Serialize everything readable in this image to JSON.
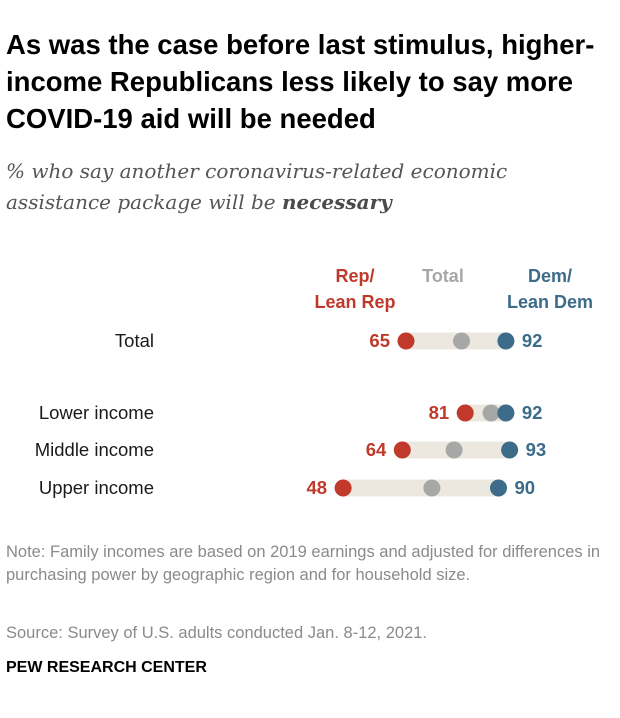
{
  "header": {
    "title": "As was the case before last stimulus, higher-income Republicans less likely to say more COVID-19 aid will be needed",
    "subtitle_prefix": "% who say another coronavirus-related economic assistance package will be ",
    "subtitle_emphasis": "necessary"
  },
  "colors": {
    "rep": "#c0392b",
    "total": "#a7a7a7",
    "dem": "#3d6b8a",
    "bar": "#ece8df"
  },
  "chart_data": {
    "type": "dot-range",
    "legend": {
      "rep": [
        "Rep/",
        "Lean Rep"
      ],
      "total": [
        "Total"
      ],
      "dem": [
        "Dem/",
        "Lean Dem"
      ]
    },
    "xlim": [
      0,
      100
    ],
    "rows": [
      {
        "label": "Total",
        "rep": 65,
        "total": 80,
        "dem": 92
      },
      {
        "label": "Lower income",
        "rep": 81,
        "total": 88,
        "dem": 92
      },
      {
        "label": "Middle income",
        "rep": 64,
        "total": 78,
        "dem": 93
      },
      {
        "label": "Upper income",
        "rep": 48,
        "total": 72,
        "dem": 90
      }
    ]
  },
  "footer": {
    "note": "Note: Family incomes are based on 2019 earnings and adjusted for differences in purchasing power by geographic region and for household size.",
    "source": "Source: Survey of U.S. adults conducted Jan. 8-12, 2021.",
    "brand": "PEW RESEARCH CENTER"
  }
}
